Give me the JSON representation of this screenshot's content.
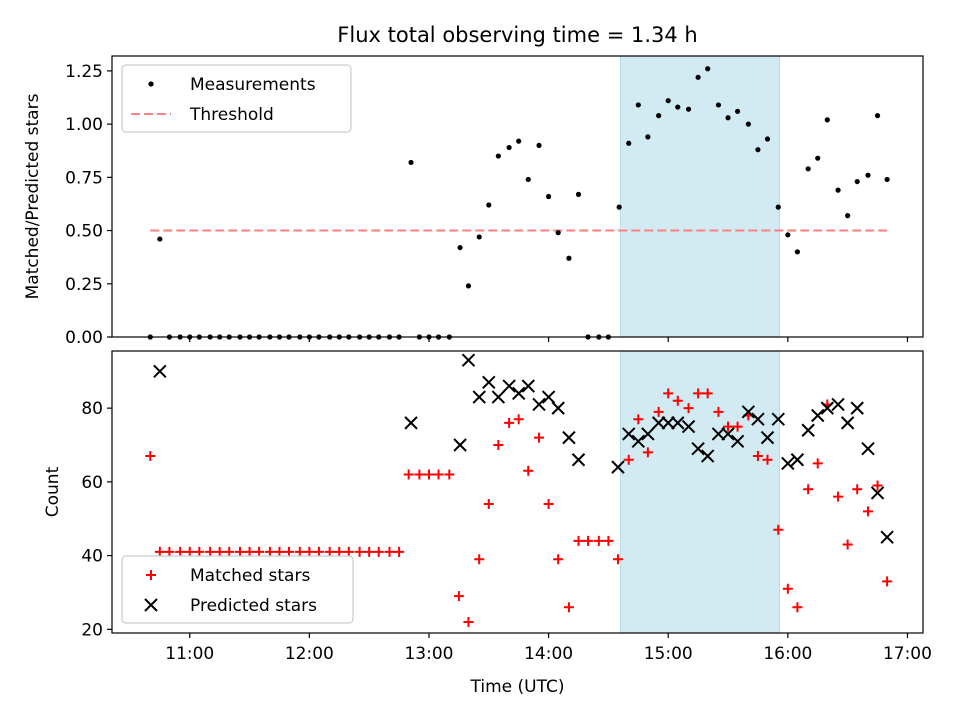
{
  "chart_data": [
    {
      "type": "scatter",
      "title": "Flux total observing time = 1.34 h",
      "xlabel": "",
      "ylabel": "Matched/Predicted stars",
      "ylim": [
        0,
        1.32
      ],
      "yticks": [
        0.0,
        0.25,
        0.5,
        0.75,
        1.0,
        1.25
      ],
      "ytick_labels": [
        "0.00",
        "0.25",
        "0.50",
        "0.75",
        "1.00",
        "1.25"
      ],
      "xlim": [
        10.35,
        17.13
      ],
      "xticks": [
        11,
        12,
        13,
        14,
        15,
        16,
        17
      ],
      "xtick_labels": [],
      "highlight_span": {
        "from": 14.6,
        "to": 15.93,
        "color": "#add8e6"
      },
      "threshold": {
        "name": "Threshold",
        "value": 0.5,
        "x_from": 10.67,
        "x_to": 16.83,
        "color": "#ff8080"
      },
      "legend": {
        "position": "upper left",
        "entries": [
          "Measurements",
          "Threshold"
        ]
      },
      "series": [
        {
          "name": "Measurements",
          "color": "#000000",
          "points": [
            [
              10.67,
              0.0
            ],
            [
              10.75,
              0.46
            ],
            [
              10.83,
              0.0
            ],
            [
              10.92,
              0.0
            ],
            [
              11.0,
              0.0
            ],
            [
              11.08,
              0.0
            ],
            [
              11.17,
              0.0
            ],
            [
              11.25,
              0.0
            ],
            [
              11.33,
              0.0
            ],
            [
              11.42,
              0.0
            ],
            [
              11.5,
              0.0
            ],
            [
              11.58,
              0.0
            ],
            [
              11.67,
              0.0
            ],
            [
              11.75,
              0.0
            ],
            [
              11.83,
              0.0
            ],
            [
              11.92,
              0.0
            ],
            [
              12.0,
              0.0
            ],
            [
              12.08,
              0.0
            ],
            [
              12.17,
              0.0
            ],
            [
              12.25,
              0.0
            ],
            [
              12.33,
              0.0
            ],
            [
              12.42,
              0.0
            ],
            [
              12.5,
              0.0
            ],
            [
              12.58,
              0.0
            ],
            [
              12.67,
              0.0
            ],
            [
              12.75,
              0.0
            ],
            [
              12.85,
              0.82
            ],
            [
              12.92,
              0.0
            ],
            [
              13.0,
              0.0
            ],
            [
              13.08,
              0.0
            ],
            [
              13.17,
              0.0
            ],
            [
              13.26,
              0.42
            ],
            [
              13.33,
              0.24
            ],
            [
              13.42,
              0.47
            ],
            [
              13.5,
              0.62
            ],
            [
              13.58,
              0.85
            ],
            [
              13.67,
              0.89
            ],
            [
              13.75,
              0.92
            ],
            [
              13.83,
              0.74
            ],
            [
              13.92,
              0.9
            ],
            [
              14.0,
              0.66
            ],
            [
              14.08,
              0.49
            ],
            [
              14.17,
              0.37
            ],
            [
              14.25,
              0.67
            ],
            [
              14.33,
              0.0
            ],
            [
              14.42,
              0.0
            ],
            [
              14.5,
              0.0
            ],
            [
              14.59,
              0.61
            ],
            [
              14.67,
              0.91
            ],
            [
              14.75,
              1.09
            ],
            [
              14.83,
              0.94
            ],
            [
              14.92,
              1.04
            ],
            [
              15.0,
              1.11
            ],
            [
              15.08,
              1.08
            ],
            [
              15.17,
              1.07
            ],
            [
              15.25,
              1.22
            ],
            [
              15.33,
              1.26
            ],
            [
              15.42,
              1.09
            ],
            [
              15.5,
              1.03
            ],
            [
              15.58,
              1.06
            ],
            [
              15.67,
              1.0
            ],
            [
              15.75,
              0.88
            ],
            [
              15.83,
              0.93
            ],
            [
              15.92,
              0.61
            ],
            [
              16.0,
              0.48
            ],
            [
              16.08,
              0.4
            ],
            [
              16.17,
              0.79
            ],
            [
              16.25,
              0.84
            ],
            [
              16.33,
              1.02
            ],
            [
              16.42,
              0.69
            ],
            [
              16.5,
              0.57
            ],
            [
              16.58,
              0.73
            ],
            [
              16.67,
              0.76
            ],
            [
              16.75,
              1.04
            ],
            [
              16.83,
              0.74
            ]
          ]
        }
      ]
    },
    {
      "type": "scatter",
      "title": "",
      "xlabel": "Time (UTC)",
      "ylabel": "Count",
      "ylim": [
        19,
        95.5
      ],
      "yticks": [
        20,
        40,
        60,
        80
      ],
      "ytick_labels": [
        "20",
        "40",
        "60",
        "80"
      ],
      "xlim": [
        10.35,
        17.13
      ],
      "xticks": [
        11,
        12,
        13,
        14,
        15,
        16,
        17
      ],
      "xtick_labels": [
        "11:00",
        "12:00",
        "13:00",
        "14:00",
        "15:00",
        "16:00",
        "17:00"
      ],
      "highlight_span": {
        "from": 14.6,
        "to": 15.93,
        "color": "#add8e6"
      },
      "legend": {
        "position": "lower left",
        "entries": [
          "Matched stars",
          "Predicted stars"
        ]
      },
      "series": [
        {
          "name": "Matched stars",
          "marker": "plus",
          "color": "#ff0000",
          "points": [
            [
              10.67,
              67
            ],
            [
              10.75,
              41
            ],
            [
              10.83,
              41
            ],
            [
              10.92,
              41
            ],
            [
              11.0,
              41
            ],
            [
              11.08,
              41
            ],
            [
              11.17,
              41
            ],
            [
              11.25,
              41
            ],
            [
              11.33,
              41
            ],
            [
              11.42,
              41
            ],
            [
              11.5,
              41
            ],
            [
              11.58,
              41
            ],
            [
              11.67,
              41
            ],
            [
              11.75,
              41
            ],
            [
              11.83,
              41
            ],
            [
              11.92,
              41
            ],
            [
              12.0,
              41
            ],
            [
              12.08,
              41
            ],
            [
              12.17,
              41
            ],
            [
              12.25,
              41
            ],
            [
              12.33,
              41
            ],
            [
              12.42,
              41
            ],
            [
              12.5,
              41
            ],
            [
              12.58,
              41
            ],
            [
              12.67,
              41
            ],
            [
              12.75,
              41
            ],
            [
              12.83,
              62
            ],
            [
              12.92,
              62
            ],
            [
              13.0,
              62
            ],
            [
              13.08,
              62
            ],
            [
              13.17,
              62
            ],
            [
              13.25,
              29
            ],
            [
              13.33,
              22
            ],
            [
              13.42,
              39
            ],
            [
              13.5,
              54
            ],
            [
              13.58,
              70
            ],
            [
              13.67,
              76
            ],
            [
              13.75,
              77
            ],
            [
              13.83,
              63
            ],
            [
              13.92,
              72
            ],
            [
              14.0,
              54
            ],
            [
              14.08,
              39
            ],
            [
              14.17,
              26
            ],
            [
              14.25,
              44
            ],
            [
              14.33,
              44
            ],
            [
              14.42,
              44
            ],
            [
              14.5,
              44
            ],
            [
              14.58,
              39
            ],
            [
              14.67,
              66
            ],
            [
              14.75,
              77
            ],
            [
              14.83,
              68
            ],
            [
              14.92,
              79
            ],
            [
              15.0,
              84
            ],
            [
              15.08,
              82
            ],
            [
              15.17,
              80
            ],
            [
              15.25,
              84
            ],
            [
              15.33,
              84
            ],
            [
              15.42,
              79
            ],
            [
              15.5,
              75
            ],
            [
              15.58,
              75
            ],
            [
              15.67,
              78
            ],
            [
              15.75,
              67
            ],
            [
              15.83,
              66
            ],
            [
              15.92,
              47
            ],
            [
              16.0,
              31
            ],
            [
              16.08,
              26
            ],
            [
              16.17,
              58
            ],
            [
              16.25,
              65
            ],
            [
              16.33,
              81
            ],
            [
              16.42,
              56
            ],
            [
              16.5,
              43
            ],
            [
              16.58,
              58
            ],
            [
              16.67,
              52
            ],
            [
              16.75,
              59
            ],
            [
              16.83,
              33
            ]
          ]
        },
        {
          "name": "Predicted stars",
          "marker": "x",
          "color": "#000000",
          "points": [
            [
              10.75,
              90
            ],
            [
              12.85,
              76
            ],
            [
              13.26,
              70
            ],
            [
              13.33,
              93
            ],
            [
              13.42,
              83
            ],
            [
              13.5,
              87
            ],
            [
              13.58,
              83
            ],
            [
              13.67,
              86
            ],
            [
              13.75,
              84
            ],
            [
              13.83,
              86
            ],
            [
              13.92,
              81
            ],
            [
              14.0,
              83
            ],
            [
              14.08,
              80
            ],
            [
              14.17,
              72
            ],
            [
              14.25,
              66
            ],
            [
              14.58,
              64
            ],
            [
              14.67,
              73
            ],
            [
              14.75,
              71
            ],
            [
              14.83,
              73
            ],
            [
              14.92,
              76
            ],
            [
              15.0,
              76
            ],
            [
              15.08,
              76
            ],
            [
              15.17,
              75
            ],
            [
              15.25,
              69
            ],
            [
              15.33,
              67
            ],
            [
              15.42,
              73
            ],
            [
              15.5,
              73
            ],
            [
              15.58,
              71
            ],
            [
              15.67,
              79
            ],
            [
              15.75,
              77
            ],
            [
              15.83,
              72
            ],
            [
              15.92,
              77
            ],
            [
              16.0,
              65
            ],
            [
              16.08,
              66
            ],
            [
              16.17,
              74
            ],
            [
              16.25,
              78
            ],
            [
              16.33,
              80
            ],
            [
              16.42,
              81
            ],
            [
              16.5,
              76
            ],
            [
              16.58,
              80
            ],
            [
              16.67,
              69
            ],
            [
              16.75,
              57
            ],
            [
              16.83,
              45
            ]
          ]
        }
      ]
    }
  ]
}
